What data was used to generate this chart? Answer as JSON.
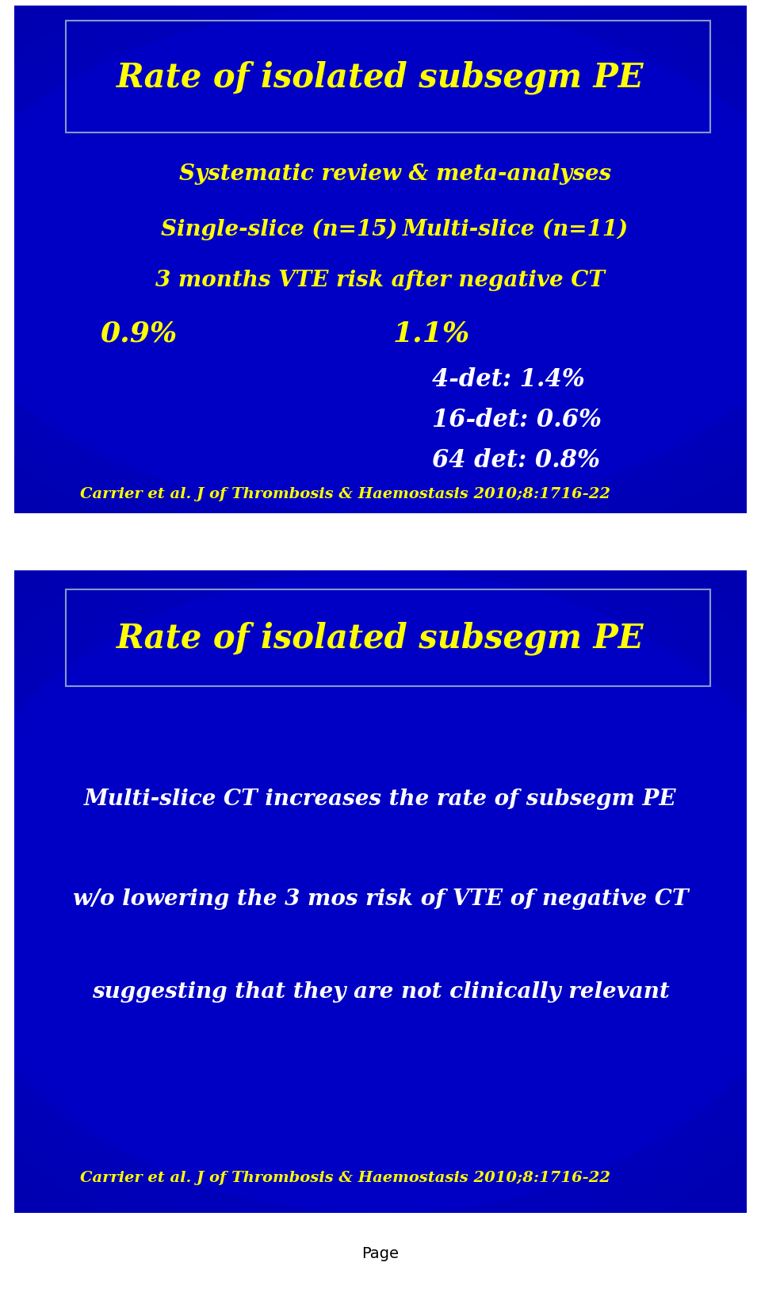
{
  "slide1": {
    "title": "Rate of isolated subsegm PE",
    "title_color": "#FFFF00",
    "title_fontsize": 30,
    "line1": "Systematic review & meta-analyses",
    "line1_color": "#FFFF00",
    "line1_fontsize": 20,
    "line2_left": "Single-slice (n=15)",
    "line2_right": "Multi-slice (n=11)",
    "line2_color": "#FFFF00",
    "line2_fontsize": 20,
    "line3": "3 months VTE risk after negative CT",
    "line3_color": "#FFFF00",
    "line3_fontsize": 20,
    "val1_left": "0.9%",
    "val1_right": "1.1%",
    "val_color": "#FFFF00",
    "val_fontsize": 26,
    "det1": "4-det: 1.4%",
    "det2": "16-det: 0.6%",
    "det3": "64 det: 0.8%",
    "det_color": "#FFFFFF",
    "det_fontsize": 22,
    "citation": "Carrier et al. J of Thrombosis & Haemostasis 2010;8:1716-22",
    "citation_color": "#FFFF00",
    "citation_fontsize": 14
  },
  "slide2": {
    "title": "Rate of isolated subsegm PE",
    "title_color": "#FFFF00",
    "title_fontsize": 30,
    "line1": "Multi-slice CT increases the rate of subsegm PE",
    "line1_color": "#FFFFFF",
    "line1_fontsize": 20,
    "line2": "w/o lowering the 3 mos risk of VTE of negative CT",
    "line2_color": "#FFFFFF",
    "line2_fontsize": 20,
    "line3": "suggesting that they are not clinically relevant",
    "line3_color": "#FFFFFF",
    "line3_fontsize": 20,
    "citation": "Carrier et al. J of Thrombosis & Haemostasis 2010;8:1716-22",
    "citation_color": "#FFFF00",
    "citation_fontsize": 14
  },
  "page_label": "Page",
  "page_label_color": "#000000",
  "page_label_fontsize": 14,
  "bg_dark": "#000020",
  "bg_blue": "#0000CC",
  "bg_bright": "#0000FF",
  "border_color": "#7777CC",
  "fig_width": 9.6,
  "fig_height": 16.31,
  "dpi": 100
}
